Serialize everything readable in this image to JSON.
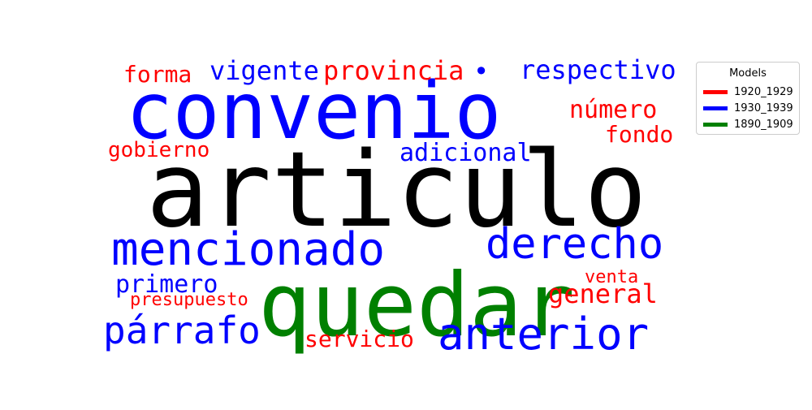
{
  "chart_data": {
    "type": "wordcloud",
    "legend": {
      "title": "Models",
      "placement": "top-right",
      "entries": [
        {
          "label": "1920_1929",
          "color": "#ff0000"
        },
        {
          "label": "1930_1939",
          "color": "#0000ff"
        },
        {
          "label": "1890_1909",
          "color": "#008000"
        }
      ]
    },
    "words": [
      {
        "text": "articulo",
        "model": "",
        "color": "#000000"
      },
      {
        "text": "convenio",
        "model": "1930_1939",
        "color": "#0000ff"
      },
      {
        "text": "quedar",
        "model": "1890_1909",
        "color": "#008000"
      },
      {
        "text": "mencionado",
        "model": "1930_1939",
        "color": "#0000ff"
      },
      {
        "text": "derecho",
        "model": "1930_1939",
        "color": "#0000ff"
      },
      {
        "text": "anterior",
        "model": "1930_1939",
        "color": "#0000ff"
      },
      {
        "text": "párrafo",
        "model": "1930_1939",
        "color": "#0000ff"
      },
      {
        "text": "respectivo",
        "model": "1930_1939",
        "color": "#0000ff"
      },
      {
        "text": "vigente",
        "model": "1930_1939",
        "color": "#0000ff"
      },
      {
        "text": "adicional",
        "model": "1930_1939",
        "color": "#0000ff"
      },
      {
        "text": "primero",
        "model": "1930_1939",
        "color": "#0000ff"
      },
      {
        "text": "•",
        "model": "1930_1939",
        "color": "#0000ff"
      },
      {
        "text": "provincia",
        "model": "1920_1929",
        "color": "#ff0000"
      },
      {
        "text": "forma",
        "model": "1920_1929",
        "color": "#ff0000"
      },
      {
        "text": "número",
        "model": "1920_1929",
        "color": "#ff0000"
      },
      {
        "text": "fondo",
        "model": "1920_1929",
        "color": "#ff0000"
      },
      {
        "text": "gobierno",
        "model": "1920_1929",
        "color": "#ff0000"
      },
      {
        "text": "general",
        "model": "1920_1929",
        "color": "#ff0000"
      },
      {
        "text": "venta",
        "model": "1920_1929",
        "color": "#ff0000"
      },
      {
        "text": "presupuesto",
        "model": "1920_1929",
        "color": "#ff0000"
      },
      {
        "text": "servicio",
        "model": "1920_1929",
        "color": "#ff0000"
      }
    ]
  }
}
